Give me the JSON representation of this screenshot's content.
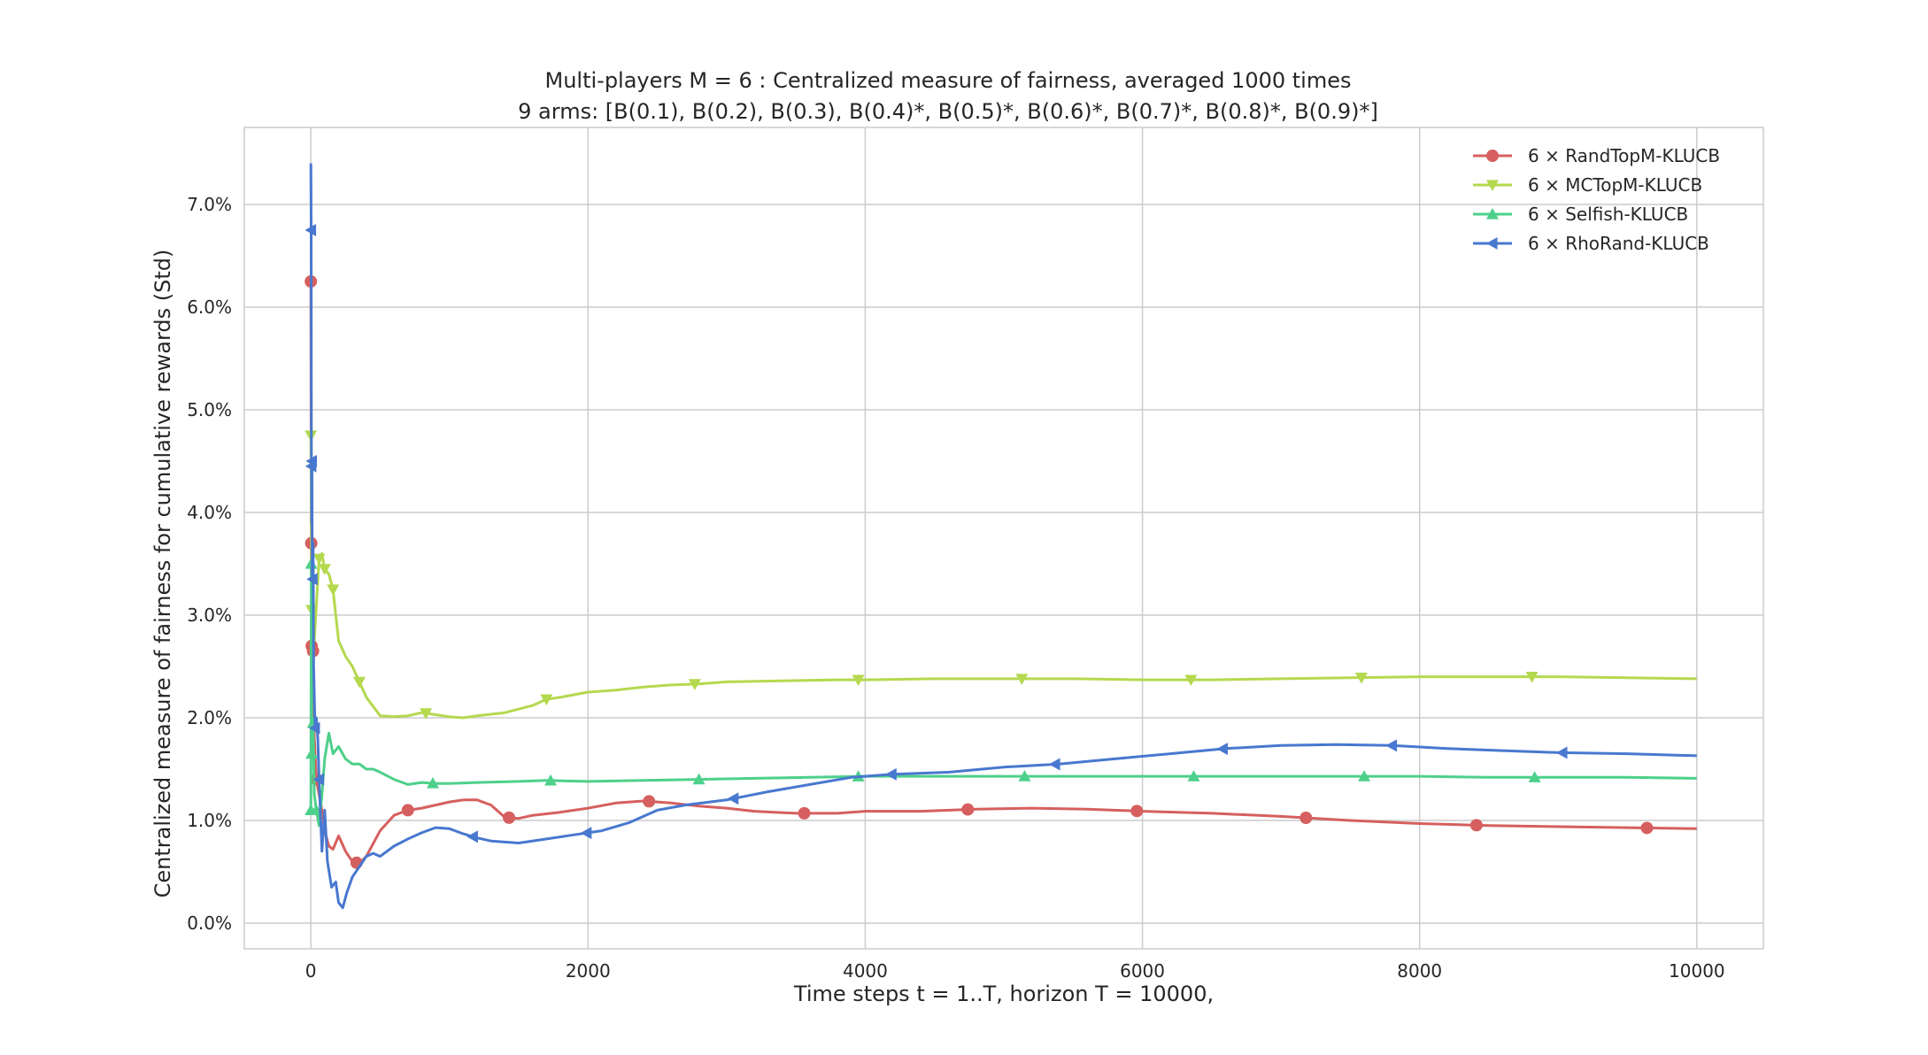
{
  "chart_data": {
    "type": "line",
    "title": "Multi-players M = 6 : Centralized measure of fairness, averaged 1000 times",
    "subtitle": "9 arms: [B(0.1), B(0.2), B(0.3), B(0.4)*, B(0.5)*, B(0.6)*, B(0.7)*, B(0.8)*, B(0.9)*]",
    "xlabel": "Time steps t = 1..T, horizon T = 10000,",
    "ylabel": "Centralized measure of fairness for cumulative rewards (Std)",
    "xlim": [
      -480,
      10480
    ],
    "ylim": [
      -0.0025,
      0.0775
    ],
    "x_ticks": [
      0,
      2000,
      4000,
      6000,
      8000,
      10000
    ],
    "x_tick_labels": [
      "0",
      "2000",
      "4000",
      "6000",
      "8000",
      "10000"
    ],
    "y_ticks": [
      0.0,
      0.01,
      0.02,
      0.03,
      0.04,
      0.05,
      0.06,
      0.07
    ],
    "y_tick_labels": [
      "0.0%",
      "1.0%",
      "2.0%",
      "3.0%",
      "4.0%",
      "5.0%",
      "6.0%",
      "7.0%"
    ],
    "grid": true,
    "legend_position": "top-right",
    "series": [
      {
        "name": "6 × RandTopM-KLUCB",
        "color": "#d65f5f",
        "marker": "circle",
        "x": [
          0,
          3,
          6,
          10,
          16,
          25,
          40,
          60,
          80,
          100,
          130,
          160,
          200,
          250,
          300,
          350,
          400,
          500,
          600,
          700,
          800,
          900,
          1000,
          1100,
          1200,
          1300,
          1400,
          1500,
          1600,
          1800,
          2000,
          2200,
          2400,
          2600,
          2800,
          3000,
          3200,
          3500,
          3800,
          4000,
          4400,
          4800,
          5200,
          5600,
          6000,
          6500,
          7000,
          7500,
          8000,
          8500,
          9000,
          9500,
          10000
        ],
        "y": [
          0.0625,
          0.037,
          0.027,
          0.026,
          0.0265,
          0.018,
          0.014,
          0.0125,
          0.011,
          0.009,
          0.0075,
          0.0072,
          0.0085,
          0.007,
          0.006,
          0.0058,
          0.0065,
          0.009,
          0.0105,
          0.011,
          0.0112,
          0.0115,
          0.0118,
          0.012,
          0.012,
          0.0115,
          0.0103,
          0.0102,
          0.0105,
          0.0108,
          0.0112,
          0.0117,
          0.0119,
          0.0117,
          0.0114,
          0.0112,
          0.0109,
          0.0107,
          0.0107,
          0.0109,
          0.0109,
          0.0111,
          0.0112,
          0.0111,
          0.0109,
          0.0107,
          0.0104,
          0.01,
          0.0097,
          0.0095,
          0.0094,
          0.0093,
          0.0092
        ],
        "marker_x": [
          0,
          3,
          6,
          16,
          40,
          330,
          700,
          1430,
          2440,
          3560,
          4740,
          5960,
          7180,
          8410,
          9640
        ]
      },
      {
        "name": "6 × MCTopM-KLUCB",
        "color": "#b4d94e",
        "marker": "triangle-down",
        "x": [
          0,
          3,
          6,
          10,
          16,
          25,
          40,
          60,
          80,
          100,
          130,
          160,
          200,
          250,
          300,
          350,
          400,
          500,
          600,
          700,
          800,
          900,
          1000,
          1100,
          1200,
          1400,
          1600,
          1700,
          1800,
          2000,
          2200,
          2400,
          2600,
          2800,
          3000,
          3400,
          3800,
          4000,
          4500,
          5000,
          5500,
          6000,
          6500,
          7000,
          7500,
          8000,
          8500,
          9000,
          9500,
          10000
        ],
        "y": [
          0.0475,
          0.041,
          0.0305,
          0.029,
          0.028,
          0.0275,
          0.031,
          0.0355,
          0.036,
          0.0345,
          0.034,
          0.0325,
          0.0275,
          0.026,
          0.025,
          0.0235,
          0.022,
          0.0202,
          0.0201,
          0.0202,
          0.0205,
          0.0203,
          0.0201,
          0.02,
          0.0202,
          0.0205,
          0.0212,
          0.0218,
          0.022,
          0.0225,
          0.0227,
          0.023,
          0.0232,
          0.0233,
          0.0235,
          0.0236,
          0.0237,
          0.0237,
          0.0238,
          0.0238,
          0.0238,
          0.0237,
          0.0237,
          0.0238,
          0.0239,
          0.024,
          0.024,
          0.024,
          0.0239,
          0.0238
        ],
        "marker_x": [
          0,
          6,
          60,
          100,
          160,
          350,
          830,
          1700,
          2770,
          3950,
          5130,
          6350,
          7580,
          8810
        ]
      },
      {
        "name": "6 × Selfish-KLUCB",
        "color": "#4dd08a",
        "marker": "triangle-up",
        "x": [
          0,
          3,
          6,
          10,
          16,
          25,
          40,
          60,
          80,
          100,
          130,
          160,
          200,
          250,
          300,
          350,
          400,
          450,
          500,
          600,
          700,
          800,
          900,
          1000,
          1200,
          1500,
          1700,
          2000,
          2400,
          2800,
          3200,
          3600,
          4000,
          4500,
          5000,
          5500,
          6000,
          6500,
          7000,
          7500,
          8000,
          8500,
          9000,
          9500,
          10000
        ],
        "y": [
          0.011,
          0.035,
          0.0165,
          0.019,
          0.0195,
          0.0125,
          0.011,
          0.0095,
          0.0125,
          0.016,
          0.0185,
          0.0165,
          0.0172,
          0.016,
          0.0155,
          0.0155,
          0.015,
          0.015,
          0.0147,
          0.014,
          0.0135,
          0.0137,
          0.0136,
          0.0136,
          0.0137,
          0.0138,
          0.0139,
          0.0138,
          0.0139,
          0.014,
          0.0141,
          0.0142,
          0.0143,
          0.0143,
          0.0143,
          0.0143,
          0.0143,
          0.0143,
          0.0143,
          0.0143,
          0.0143,
          0.0142,
          0.0142,
          0.0142,
          0.0141
        ],
        "marker_x": [
          0,
          3,
          6,
          16,
          40,
          880,
          1730,
          2800,
          3950,
          5150,
          6370,
          7600,
          8830
        ]
      },
      {
        "name": "6 × RhoRand-KLUCB",
        "color": "#4878cf",
        "marker": "triangle-left",
        "x": [
          0,
          2,
          4,
          6,
          8,
          10,
          13,
          16,
          20,
          25,
          30,
          40,
          50,
          60,
          80,
          100,
          120,
          150,
          180,
          200,
          230,
          260,
          300,
          350,
          400,
          450,
          500,
          600,
          700,
          800,
          900,
          1000,
          1100,
          1200,
          1300,
          1500,
          1700,
          1900,
          2100,
          2300,
          2500,
          2700,
          3000,
          3300,
          3600,
          3900,
          4200,
          4600,
          5000,
          5400,
          5800,
          6200,
          6600,
          7000,
          7400,
          7800,
          8200,
          8600,
          9000,
          9500,
          10000
        ],
        "y": [
          0.074,
          0.0675,
          0.0445,
          0.039,
          0.045,
          0.034,
          0.0335,
          0.037,
          0.025,
          0.022,
          0.019,
          0.02,
          0.018,
          0.014,
          0.007,
          0.011,
          0.006,
          0.0035,
          0.004,
          0.002,
          0.0015,
          0.003,
          0.0045,
          0.0055,
          0.0065,
          0.0068,
          0.0065,
          0.0075,
          0.0082,
          0.0088,
          0.0093,
          0.0092,
          0.0087,
          0.0083,
          0.008,
          0.0078,
          0.0082,
          0.0086,
          0.009,
          0.0098,
          0.011,
          0.0115,
          0.012,
          0.0128,
          0.0135,
          0.0142,
          0.0145,
          0.0147,
          0.0152,
          0.0155,
          0.016,
          0.0165,
          0.017,
          0.0173,
          0.0174,
          0.0173,
          0.017,
          0.0168,
          0.0166,
          0.0165,
          0.0163
        ],
        "marker_x": [
          2,
          4,
          8,
          13,
          30,
          60,
          1170,
          1990,
          3050,
          4190,
          5370,
          6580,
          7800,
          9030
        ]
      }
    ]
  }
}
